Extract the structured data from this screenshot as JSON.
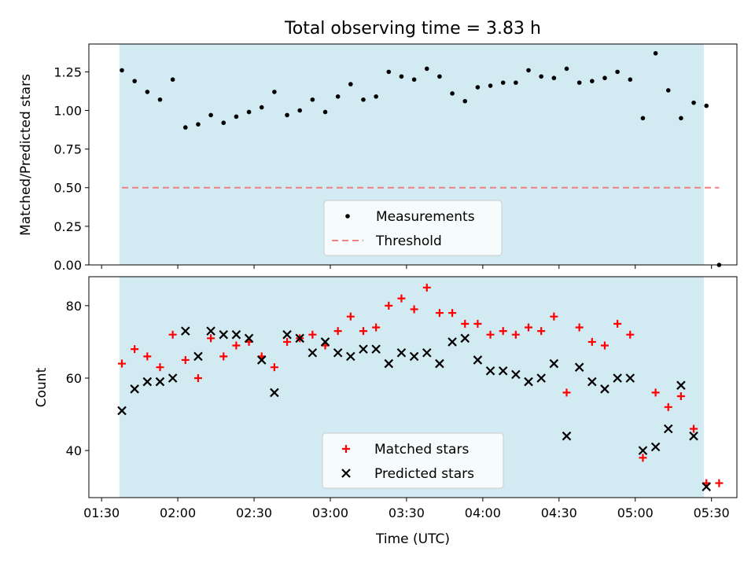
{
  "chart_data": [
    {
      "type": "scatter",
      "title": "Total observing time = 3.83 h",
      "ylabel": "Matched/Predicted stars",
      "xlabel": "",
      "xlim": [
        "01:25",
        "05:40"
      ],
      "ylim": [
        0,
        1.43
      ],
      "yticks": [
        "0.00",
        "0.25",
        "0.50",
        "0.75",
        "1.00",
        "1.25"
      ],
      "observing_window": [
        "01:37",
        "05:27"
      ],
      "window_color": "#add8e6",
      "threshold": 0.5,
      "series": [
        {
          "name": "Measurements",
          "color": "#000000",
          "x": [
            "01:38",
            "01:43",
            "01:48",
            "01:53",
            "01:58",
            "02:03",
            "02:08",
            "02:13",
            "02:18",
            "02:23",
            "02:28",
            "02:33",
            "02:38",
            "02:43",
            "02:48",
            "02:53",
            "02:58",
            "03:03",
            "03:08",
            "03:13",
            "03:18",
            "03:23",
            "03:28",
            "03:33",
            "03:38",
            "03:43",
            "03:48",
            "03:53",
            "03:58",
            "04:03",
            "04:08",
            "04:13",
            "04:18",
            "04:23",
            "04:28",
            "04:33",
            "04:38",
            "04:43",
            "04:48",
            "04:53",
            "04:58",
            "05:03",
            "05:08",
            "05:13",
            "05:18",
            "05:23",
            "05:28",
            "05:33"
          ],
          "y": [
            1.26,
            1.19,
            1.12,
            1.07,
            1.2,
            0.89,
            0.91,
            0.97,
            0.92,
            0.96,
            0.99,
            1.02,
            1.12,
            0.97,
            1.0,
            1.07,
            0.99,
            1.09,
            1.17,
            1.07,
            1.09,
            1.25,
            1.22,
            1.2,
            1.27,
            1.22,
            1.11,
            1.06,
            1.15,
            1.16,
            1.18,
            1.18,
            1.26,
            1.22,
            1.21,
            1.27,
            1.18,
            1.19,
            1.21,
            1.25,
            1.2,
            0.95,
            1.37,
            1.13,
            0.95,
            1.05,
            1.03,
            0.0
          ]
        },
        {
          "name": "Threshold",
          "color": "#f08080",
          "style": "dashed",
          "x": [
            "01:38",
            "05:33"
          ],
          "y": [
            0.5,
            0.5
          ]
        }
      ],
      "legend": "lower-center"
    },
    {
      "type": "scatter",
      "title": "",
      "ylabel": "Count",
      "xlabel": "Time (UTC)",
      "xlim": [
        "01:25",
        "05:40"
      ],
      "ylim": [
        27,
        88
      ],
      "yticks": [
        "40",
        "60",
        "80"
      ],
      "xticks": [
        "01:30",
        "02:00",
        "02:30",
        "03:00",
        "03:30",
        "04:00",
        "04:30",
        "05:00",
        "05:30"
      ],
      "observing_window": [
        "01:37",
        "05:27"
      ],
      "window_color": "#add8e6",
      "series": [
        {
          "name": "Matched stars",
          "marker": "plus",
          "color": "#ff0000",
          "x": [
            "01:38",
            "01:43",
            "01:48",
            "01:53",
            "01:58",
            "02:03",
            "02:08",
            "02:13",
            "02:18",
            "02:23",
            "02:28",
            "02:33",
            "02:38",
            "02:43",
            "02:48",
            "02:53",
            "02:58",
            "03:03",
            "03:08",
            "03:13",
            "03:18",
            "03:23",
            "03:28",
            "03:33",
            "03:38",
            "03:43",
            "03:48",
            "03:53",
            "03:58",
            "04:03",
            "04:08",
            "04:13",
            "04:18",
            "04:23",
            "04:28",
            "04:33",
            "04:38",
            "04:43",
            "04:48",
            "04:53",
            "04:58",
            "05:03",
            "05:08",
            "05:13",
            "05:18",
            "05:23",
            "05:28",
            "05:33"
          ],
          "y": [
            64,
            68,
            66,
            63,
            72,
            65,
            60,
            71,
            66,
            69,
            70,
            66,
            63,
            70,
            71,
            72,
            69,
            73,
            77,
            73,
            74,
            80,
            82,
            79,
            85,
            78,
            78,
            75,
            75,
            72,
            73,
            72,
            74,
            73,
            77,
            56,
            74,
            70,
            69,
            75,
            72,
            38,
            56,
            52,
            55,
            46,
            31,
            31
          ]
        },
        {
          "name": "Predicted stars",
          "marker": "x",
          "color": "#000000",
          "x": [
            "01:38",
            "01:43",
            "01:48",
            "01:53",
            "01:58",
            "02:03",
            "02:08",
            "02:13",
            "02:18",
            "02:23",
            "02:28",
            "02:33",
            "02:38",
            "02:43",
            "02:48",
            "02:53",
            "02:58",
            "03:03",
            "03:08",
            "03:13",
            "03:18",
            "03:23",
            "03:28",
            "03:33",
            "03:38",
            "03:43",
            "03:48",
            "03:53",
            "03:58",
            "04:03",
            "04:08",
            "04:13",
            "04:18",
            "04:23",
            "04:28",
            "04:33",
            "04:38",
            "04:43",
            "04:48",
            "04:53",
            "04:58",
            "05:03",
            "05:08",
            "05:13",
            "05:18",
            "05:23",
            "05:28"
          ],
          "y": [
            51,
            57,
            59,
            59,
            60,
            73,
            66,
            73,
            72,
            72,
            71,
            65,
            56,
            72,
            71,
            67,
            70,
            67,
            66,
            68,
            68,
            64,
            67,
            66,
            67,
            64,
            70,
            71,
            65,
            62,
            62,
            61,
            59,
            60,
            64,
            44,
            63,
            59,
            57,
            60,
            60,
            40,
            41,
            46,
            58,
            44,
            30
          ]
        }
      ],
      "legend": "lower-center"
    }
  ]
}
